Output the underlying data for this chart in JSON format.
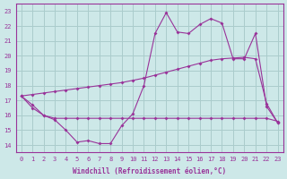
{
  "bg_color": "#cde8e8",
  "grid_color": "#aacccc",
  "line_color": "#993399",
  "xlabel": "Windchill (Refroidissement éolien,°C)",
  "ylim": [
    13.5,
    23.5
  ],
  "xlim": [
    -0.5,
    23.5
  ],
  "yticks": [
    14,
    15,
    16,
    17,
    18,
    19,
    20,
    21,
    22,
    23
  ],
  "xticks": [
    0,
    1,
    2,
    3,
    4,
    5,
    6,
    7,
    8,
    9,
    10,
    11,
    12,
    13,
    14,
    15,
    16,
    17,
    18,
    19,
    20,
    21,
    22,
    23
  ],
  "line1_x": [
    0,
    1,
    2,
    3,
    4,
    5,
    6,
    7,
    8,
    9,
    10,
    11,
    12,
    13,
    14,
    15,
    16,
    17,
    18,
    19,
    20,
    21,
    22,
    23
  ],
  "line1_y": [
    17.3,
    16.7,
    16.0,
    15.7,
    15.0,
    14.2,
    14.3,
    14.1,
    14.1,
    15.3,
    16.1,
    18.0,
    21.5,
    22.9,
    21.6,
    21.5,
    22.1,
    22.5,
    22.2,
    19.8,
    19.8,
    21.5,
    16.6,
    15.5
  ],
  "line2_x": [
    0,
    1,
    2,
    3,
    4,
    5,
    6,
    7,
    8,
    9,
    10,
    11,
    12,
    13,
    14,
    15,
    16,
    17,
    18,
    19,
    20,
    21,
    22,
    23
  ],
  "line2_y": [
    17.3,
    17.4,
    17.5,
    17.6,
    17.7,
    17.8,
    17.9,
    18.0,
    18.1,
    18.2,
    18.35,
    18.5,
    18.7,
    18.9,
    19.1,
    19.3,
    19.5,
    19.7,
    19.8,
    19.85,
    19.9,
    19.8,
    16.8,
    15.5
  ],
  "line3_x": [
    0,
    1,
    2,
    3,
    4,
    5,
    6,
    7,
    8,
    9,
    10,
    11,
    12,
    13,
    14,
    15,
    16,
    17,
    18,
    19,
    20,
    21,
    22,
    23
  ],
  "line3_y": [
    17.3,
    16.5,
    16.0,
    15.8,
    15.8,
    15.8,
    15.8,
    15.8,
    15.8,
    15.8,
    15.8,
    15.8,
    15.8,
    15.8,
    15.8,
    15.8,
    15.8,
    15.8,
    15.8,
    15.8,
    15.8,
    15.8,
    15.8,
    15.6
  ]
}
